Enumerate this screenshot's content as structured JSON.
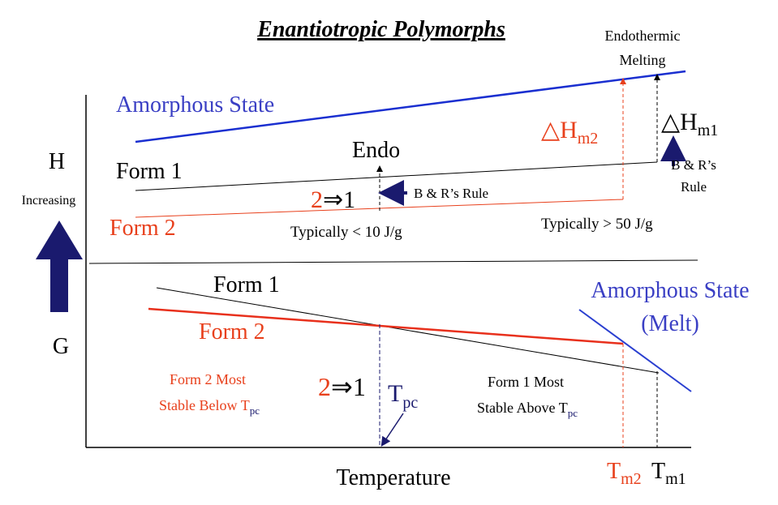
{
  "title": "Enantiotropic Polymorphs",
  "enthalpy_panel": {
    "axis_label": "H",
    "axis_note": "Increasing",
    "amorphous": "Amorphous State",
    "form1": "Form 1",
    "form2": "Form 2",
    "endo": "Endo",
    "transition": {
      "from": "2",
      "to": "⇒1"
    },
    "rule_left": "B & R’s Rule",
    "typical_low": "Typically < 10 J/g",
    "typical_high": "Typically > 50 J/g",
    "dh_m2": {
      "symbol": "△H",
      "sub": "m2"
    },
    "dh_m1": {
      "symbol": "△H",
      "sub": "m1"
    },
    "rule_right": [
      "B & R’s",
      "Rule"
    ],
    "melting_note": [
      "Endothermic",
      "Melting"
    ]
  },
  "gibbs_panel": {
    "axis_label": "G",
    "form1": "Form 1",
    "form2": "Form 2",
    "amorphous": [
      "Amorphous State",
      "(Melt)"
    ],
    "form2_note": {
      "line1": "Form 2 Most",
      "line2": "Stable Below T",
      "sub": "pc"
    },
    "form1_note": {
      "line1": "Form 1 Most",
      "line2": "Stable Above T",
      "sub": "pc"
    },
    "transition": {
      "from": "2",
      "to": "⇒1"
    },
    "tpc": {
      "symbol": "T",
      "sub": "pc"
    },
    "x_label": "Temperature",
    "tm2": {
      "symbol": "T",
      "sub": "m2"
    },
    "tm1": {
      "symbol": "T",
      "sub": "m1"
    }
  }
}
